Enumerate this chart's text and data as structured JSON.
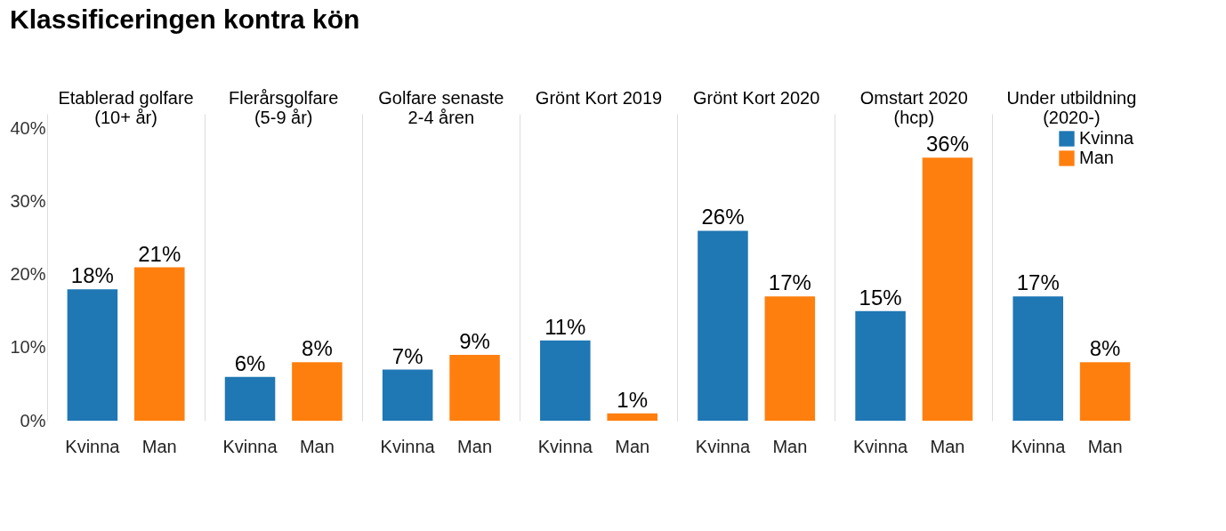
{
  "chart_data": {
    "type": "bar",
    "title": "Klassificeringen kontra kön",
    "categories": [
      "Etablerad golfare\n(10+ år)",
      "Flerårsgolfare\n(5-9 år)",
      "Golfare senaste\n2-4 åren",
      "Grönt Kort 2019",
      "Grönt Kort 2020",
      "Omstart 2020\n(hcp)",
      "Under utbildning\n(2020-)"
    ],
    "series": [
      {
        "name": "Kvinna",
        "color": "#1f77b4",
        "values": [
          18,
          6,
          7,
          11,
          26,
          15,
          17
        ],
        "value_labels": [
          "18%",
          "6%",
          "7%",
          "11%",
          "26%",
          "15%",
          "17%"
        ]
      },
      {
        "name": "Man",
        "color": "#ff7f0e",
        "values": [
          21,
          8,
          9,
          1,
          17,
          36,
          8
        ],
        "value_labels": [
          "21%",
          "8%",
          "9%",
          "1%",
          "17%",
          "36%",
          "8%"
        ]
      }
    ],
    "ylim": [
      0,
      42
    ],
    "yticks": [
      {
        "value": 0,
        "label": "0%"
      },
      {
        "value": 10,
        "label": "10%"
      },
      {
        "value": 20,
        "label": "20%"
      },
      {
        "value": 30,
        "label": "30%"
      },
      {
        "value": 40,
        "label": "40%"
      }
    ],
    "grid": "x",
    "legend": "top right"
  }
}
